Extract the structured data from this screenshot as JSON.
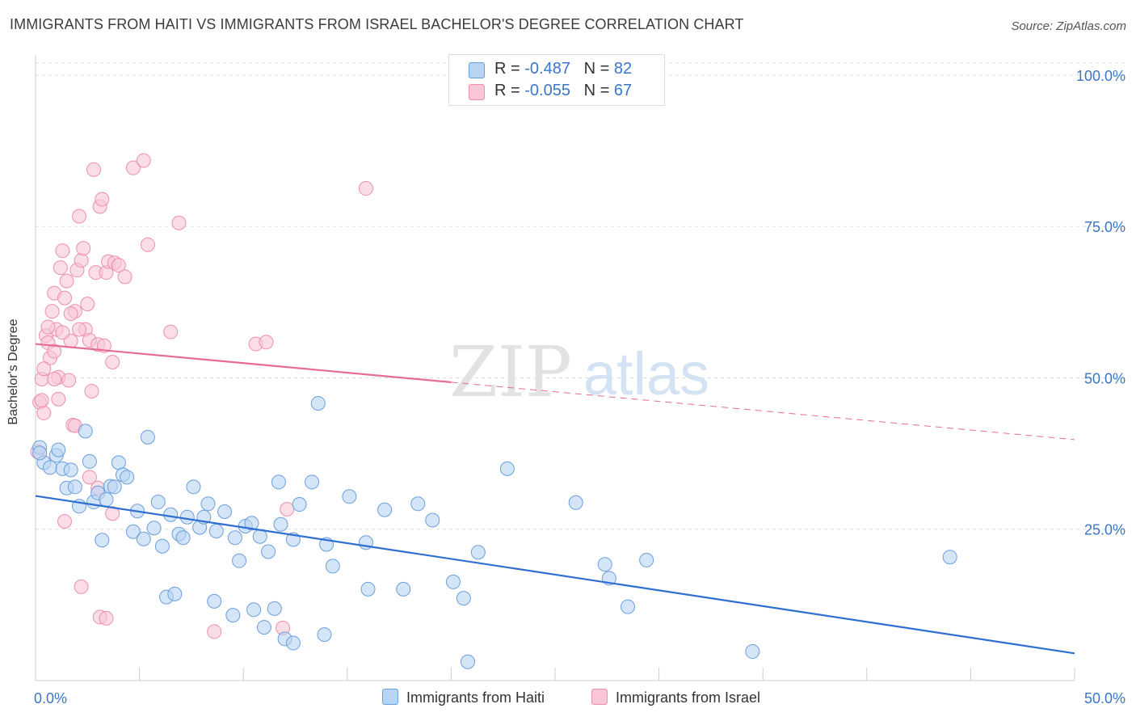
{
  "title": "IMMIGRANTS FROM HAITI VS IMMIGRANTS FROM ISRAEL BACHELOR'S DEGREE CORRELATION CHART",
  "source": "Source: ZipAtlas.com",
  "watermark": {
    "zip": "ZIP",
    "atlas": "atlas"
  },
  "legend_top": {
    "haiti": {
      "r_label": "R = ",
      "r_value": "-0.487",
      "n_label": "N = ",
      "n_value": "82"
    },
    "israel": {
      "r_label": "R = ",
      "r_value": "-0.055",
      "n_label": "N = ",
      "n_value": "67"
    }
  },
  "legend_bottom": {
    "haiti": "Immigrants from Haiti",
    "israel": "Immigrants from Israel"
  },
  "colors": {
    "haiti_fill": "#b8d4f4",
    "haiti_stroke": "#6a9fde",
    "haiti_line": "#2e6fd0",
    "israel_fill": "#f8c6d6",
    "israel_stroke": "#ee8fae",
    "israel_line": "#e66c93",
    "tick_label": "#3a76c8",
    "grid": "#dedede"
  },
  "chart_data": {
    "type": "scatter",
    "title": "IMMIGRANTS FROM HAITI VS IMMIGRANTS FROM ISRAEL BACHELOR'S DEGREE CORRELATION CHART",
    "xlabel": "",
    "ylabel": "Bachelor's Degree",
    "xlim": [
      0,
      50
    ],
    "ylim": [
      0,
      102
    ],
    "x_tick_labels": [
      {
        "v": 0,
        "label": "0.0%"
      },
      {
        "v": 50,
        "label": "50.0%"
      }
    ],
    "y_tick_labels": [
      {
        "v": 25,
        "label": "25.0%"
      },
      {
        "v": 50,
        "label": "50.0%"
      },
      {
        "v": 75,
        "label": "75.0%"
      },
      {
        "v": 100,
        "label": "100.0%"
      }
    ],
    "series": [
      {
        "name": "Immigrants from Haiti",
        "R": -0.487,
        "N": 82,
        "trend": {
          "x0": 0,
          "y0": 30.5,
          "x1": 50,
          "y1": 4.5,
          "dashed_from": null
        },
        "points": [
          [
            0.2,
            38.5
          ],
          [
            0.4,
            36
          ],
          [
            0.7,
            35.2
          ],
          [
            1.0,
            37.2
          ],
          [
            1.1,
            38.1
          ],
          [
            1.3,
            35
          ],
          [
            1.5,
            31.8
          ],
          [
            1.7,
            34.8
          ],
          [
            1.9,
            32
          ],
          [
            2.1,
            28.8
          ],
          [
            2.4,
            41.2
          ],
          [
            2.6,
            36.2
          ],
          [
            2.8,
            29.5
          ],
          [
            3.0,
            31
          ],
          [
            3.2,
            23.2
          ],
          [
            3.4,
            29.9
          ],
          [
            3.6,
            32.1
          ],
          [
            3.8,
            32
          ],
          [
            4.0,
            36
          ],
          [
            4.2,
            34
          ],
          [
            4.4,
            33.6
          ],
          [
            4.7,
            24.6
          ],
          [
            4.9,
            28
          ],
          [
            5.2,
            23.4
          ],
          [
            5.4,
            40.2
          ],
          [
            5.7,
            25.2
          ],
          [
            5.9,
            29.5
          ],
          [
            6.1,
            22.2
          ],
          [
            6.5,
            27.4
          ],
          [
            6.9,
            24.2
          ],
          [
            7.1,
            23.6
          ],
          [
            7.3,
            27
          ],
          [
            7.6,
            32
          ],
          [
            7.9,
            25.3
          ],
          [
            8.1,
            27
          ],
          [
            8.3,
            29.2
          ],
          [
            8.7,
            24.7
          ],
          [
            9.1,
            27.9
          ],
          [
            9.6,
            23.6
          ],
          [
            9.8,
            19.8
          ],
          [
            10.1,
            25.5
          ],
          [
            10.4,
            26
          ],
          [
            10.8,
            23.8
          ],
          [
            11.2,
            21.3
          ],
          [
            11.7,
            32.8
          ],
          [
            11.8,
            25.8
          ],
          [
            12.4,
            23.3
          ],
          [
            12.7,
            29.1
          ],
          [
            13.3,
            32.8
          ],
          [
            14.0,
            22.5
          ],
          [
            14.3,
            18.9
          ],
          [
            15.1,
            30.4
          ],
          [
            15.9,
            22.8
          ],
          [
            16.8,
            28.2
          ],
          [
            18.4,
            29.2
          ],
          [
            19.1,
            26.5
          ],
          [
            20.1,
            16.3
          ],
          [
            21.3,
            21.2
          ],
          [
            22.7,
            35
          ],
          [
            26.0,
            29.4
          ],
          [
            27.4,
            19.2
          ],
          [
            27.6,
            16.9
          ],
          [
            28.5,
            12.2
          ],
          [
            29.4,
            19.9
          ],
          [
            34.5,
            4.8
          ],
          [
            44.0,
            20.4
          ],
          [
            13.6,
            45.8
          ],
          [
            6.3,
            13.8
          ],
          [
            6.7,
            14.3
          ],
          [
            8.6,
            13.1
          ],
          [
            9.5,
            10.8
          ],
          [
            10.5,
            11.7
          ],
          [
            11.0,
            8.8
          ],
          [
            11.5,
            11.9
          ],
          [
            12.0,
            6.9
          ],
          [
            12.4,
            6.2
          ],
          [
            13.9,
            7.6
          ],
          [
            16.0,
            15.1
          ],
          [
            17.7,
            15.1
          ],
          [
            20.6,
            13.6
          ],
          [
            20.8,
            3.1
          ],
          [
            0.2,
            37.6
          ]
        ]
      },
      {
        "name": "Immigrants from Israel",
        "R": -0.055,
        "N": 67,
        "trend": {
          "x0": 0,
          "y0": 55.6,
          "x1": 50,
          "y1": 39.8,
          "dashed_from": 20
        },
        "points": [
          [
            0.1,
            37.8
          ],
          [
            0.2,
            46
          ],
          [
            0.3,
            49.8
          ],
          [
            0.4,
            44.2
          ],
          [
            0.5,
            57
          ],
          [
            0.6,
            55.8
          ],
          [
            0.7,
            53.3
          ],
          [
            0.8,
            61
          ],
          [
            0.9,
            64
          ],
          [
            1.0,
            58
          ],
          [
            1.1,
            50.1
          ],
          [
            1.2,
            68.2
          ],
          [
            1.3,
            71
          ],
          [
            1.4,
            63.2
          ],
          [
            1.5,
            66
          ],
          [
            1.6,
            49.6
          ],
          [
            1.7,
            56.1
          ],
          [
            1.8,
            42.2
          ],
          [
            1.9,
            61
          ],
          [
            2.0,
            67.8
          ],
          [
            2.1,
            76.7
          ],
          [
            2.2,
            69.4
          ],
          [
            2.3,
            71.4
          ],
          [
            2.4,
            58
          ],
          [
            2.5,
            62.2
          ],
          [
            2.6,
            56.2
          ],
          [
            2.7,
            47.8
          ],
          [
            2.8,
            84.4
          ],
          [
            2.9,
            67.4
          ],
          [
            3.0,
            55.5
          ],
          [
            3.1,
            78.3
          ],
          [
            3.2,
            79.5
          ],
          [
            3.3,
            55.3
          ],
          [
            3.4,
            67.4
          ],
          [
            3.5,
            69.2
          ],
          [
            3.7,
            52.6
          ],
          [
            3.8,
            69
          ],
          [
            4.0,
            68.6
          ],
          [
            4.3,
            66.7
          ],
          [
            4.7,
            84.7
          ],
          [
            5.2,
            85.9
          ],
          [
            5.4,
            72
          ],
          [
            6.9,
            75.6
          ],
          [
            6.5,
            57.6
          ],
          [
            10.6,
            55.6
          ],
          [
            11.1,
            55.9
          ],
          [
            15.9,
            81.3
          ],
          [
            0.3,
            46.3
          ],
          [
            0.6,
            58.4
          ],
          [
            0.9,
            54.4
          ],
          [
            1.1,
            46.5
          ],
          [
            1.4,
            26.3
          ],
          [
            1.9,
            42.1
          ],
          [
            2.2,
            15.5
          ],
          [
            2.6,
            33.6
          ],
          [
            3.1,
            10.5
          ],
          [
            3.4,
            10.3
          ],
          [
            3.7,
            27.6
          ],
          [
            8.6,
            8.1
          ],
          [
            11.9,
            8.7
          ],
          [
            12.1,
            28.3
          ],
          [
            0.4,
            51.5
          ],
          [
            0.9,
            49.8
          ],
          [
            1.3,
            57.5
          ],
          [
            1.7,
            60.6
          ],
          [
            2.1,
            58
          ],
          [
            3.0,
            31.8
          ]
        ]
      }
    ]
  }
}
